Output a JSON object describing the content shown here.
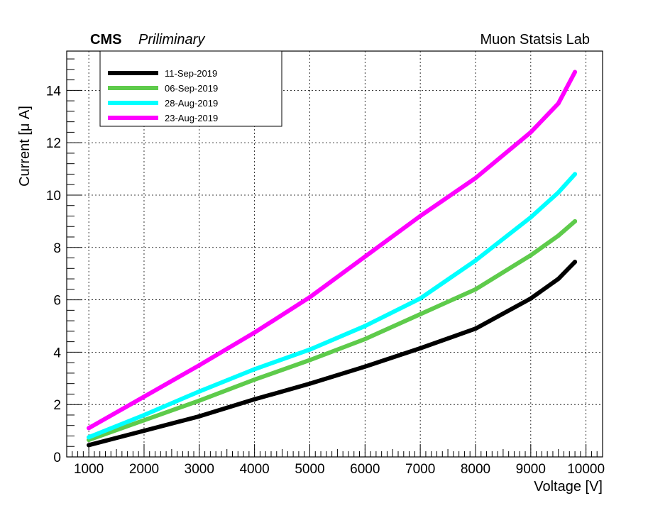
{
  "header": {
    "experiment": "CMS",
    "status": "Priliminary",
    "lab": "Muon Statsis Lab"
  },
  "chart_data": {
    "type": "line",
    "xlabel": "Voltage [V]",
    "ylabel": "Current [μ A]",
    "xlim": [
      600,
      10300
    ],
    "ylim": [
      0,
      15.5
    ],
    "xticks": [
      1000,
      2000,
      3000,
      4000,
      5000,
      6000,
      7000,
      8000,
      9000,
      10000
    ],
    "yticks": [
      0,
      2,
      4,
      6,
      8,
      10,
      12,
      14
    ],
    "grid": true,
    "legend_position": "top-left",
    "series": [
      {
        "name": "11-Sep-2019",
        "color": "#000000",
        "x": [
          1000,
          2000,
          3000,
          4000,
          5000,
          6000,
          7000,
          8000,
          9000,
          9500,
          9800
        ],
        "y": [
          0.45,
          1.0,
          1.55,
          2.2,
          2.8,
          3.45,
          4.15,
          4.9,
          6.05,
          6.8,
          7.45
        ]
      },
      {
        "name": "06-Sep-2019",
        "color": "#5ecb4b",
        "x": [
          1000,
          2000,
          3000,
          4000,
          5000,
          6000,
          7000,
          8000,
          9000,
          9500,
          9800
        ],
        "y": [
          0.65,
          1.4,
          2.15,
          2.95,
          3.7,
          4.5,
          5.45,
          6.4,
          7.7,
          8.45,
          9.0
        ]
      },
      {
        "name": "28-Aug-2019",
        "color": "#00ffff",
        "x": [
          1000,
          2000,
          3000,
          4000,
          5000,
          6000,
          7000,
          8000,
          9000,
          9500,
          9800
        ],
        "y": [
          0.75,
          1.6,
          2.5,
          3.35,
          4.1,
          5.0,
          6.05,
          7.5,
          9.15,
          10.1,
          10.8
        ]
      },
      {
        "name": "23-Aug-2019",
        "color": "#ff00ff",
        "x": [
          1000,
          2000,
          3000,
          4000,
          5000,
          6000,
          7000,
          8000,
          9000,
          9500,
          9800
        ],
        "y": [
          1.1,
          2.3,
          3.5,
          4.75,
          6.1,
          7.65,
          9.2,
          10.65,
          12.4,
          13.5,
          14.7
        ]
      }
    ]
  }
}
